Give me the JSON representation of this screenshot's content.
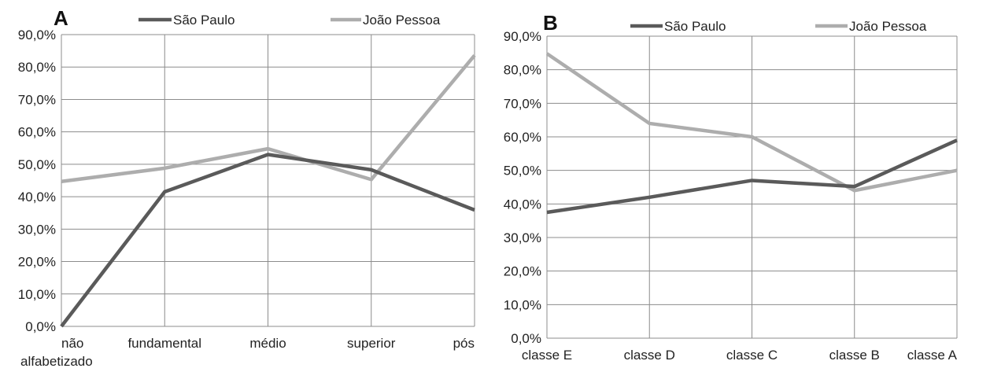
{
  "chart_data": [
    {
      "type": "line",
      "panel_label": "A",
      "categories": [
        "não\nalfabetizado",
        "fundamental",
        "médio",
        "superior",
        "pós"
      ],
      "series": [
        {
          "name": "São Paulo",
          "color": "#5a5a5a",
          "values": [
            0.0,
            41.5,
            53.0,
            48.3,
            35.9
          ]
        },
        {
          "name": "João Pessoa",
          "color": "#adadad",
          "values": [
            44.7,
            48.8,
            54.8,
            45.3,
            83.6
          ]
        }
      ],
      "yticks": [
        "0,0%",
        "10,0%",
        "20,0%",
        "30,0%",
        "40,0%",
        "50,0%",
        "60,0%",
        "70,0%",
        "80,0%",
        "90,0%"
      ],
      "ylim": [
        0,
        90
      ],
      "grid": true,
      "legend": "top"
    },
    {
      "type": "line",
      "panel_label": "B",
      "categories": [
        "classe E",
        "classe D",
        "classe C",
        "classe B",
        "classe A"
      ],
      "series": [
        {
          "name": "São Paulo",
          "color": "#5a5a5a",
          "values": [
            37.5,
            42.0,
            47.0,
            45.2,
            59.0
          ]
        },
        {
          "name": "João Pessoa",
          "color": "#adadad",
          "values": [
            84.8,
            64.0,
            60.0,
            44.0,
            50.0
          ]
        }
      ],
      "yticks": [
        "0,0%",
        "10,0%",
        "20,0%",
        "30,0%",
        "40,0%",
        "50,0%",
        "60,0%",
        "70,0%",
        "80,0%",
        "90,0%"
      ],
      "ylim": [
        0,
        90
      ],
      "grid": true,
      "legend": "top"
    }
  ]
}
